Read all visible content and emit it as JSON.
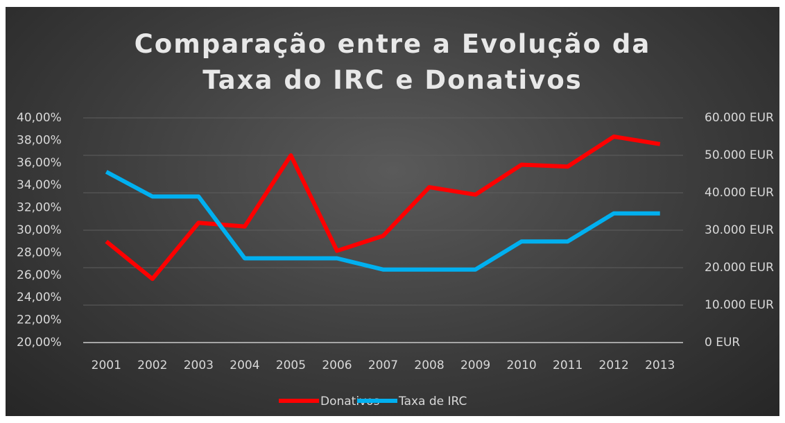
{
  "chart_data": {
    "type": "line",
    "title": "Comparação entre a Evolução da Taxa do IRC e Donativos",
    "categories": [
      "2001",
      "2002",
      "2003",
      "2004",
      "2005",
      "2006",
      "2007",
      "2008",
      "2009",
      "2010",
      "2011",
      "2012",
      "2013"
    ],
    "series": [
      {
        "name": "Donativos",
        "color": "#ff0000",
        "axis": "y2",
        "values": [
          27000,
          17000,
          32000,
          31000,
          50000,
          24500,
          28500,
          41500,
          39500,
          47500,
          47000,
          55000,
          53000
        ]
      },
      {
        "name": "Taxa de IRC",
        "color": "#00b0f0",
        "values": [
          35.2,
          33,
          33,
          27.5,
          27.5,
          27.5,
          26.5,
          26.5,
          26.5,
          29,
          29,
          31.5,
          31.5
        ]
      }
    ],
    "ylim": [
      20,
      40
    ],
    "yticks": [
      {
        "value": 20,
        "label": "20,00%"
      },
      {
        "value": 22,
        "label": "22,00%"
      },
      {
        "value": 24,
        "label": "24,00%"
      },
      {
        "value": 26,
        "label": "26,00%"
      },
      {
        "value": 28,
        "label": "28,00%"
      },
      {
        "value": 30,
        "label": "30,00%"
      },
      {
        "value": 32,
        "label": "32,00%"
      },
      {
        "value": 34,
        "label": "34,00%"
      },
      {
        "value": 36,
        "label": "36,00%"
      },
      {
        "value": 38,
        "label": "38,00%"
      },
      {
        "value": 40,
        "label": "40,00%"
      }
    ],
    "y2lim": [
      0,
      60000
    ],
    "y2ticks": [
      {
        "value": 0,
        "label": "0 EUR"
      },
      {
        "value": 10000,
        "label": "10.000 EUR"
      },
      {
        "value": 20000,
        "label": "20.000 EUR"
      },
      {
        "value": 30000,
        "label": "30.000 EUR"
      },
      {
        "value": 40000,
        "label": "40.000 EUR"
      },
      {
        "value": 50000,
        "label": "50.000 EUR"
      },
      {
        "value": 60000,
        "label": "60.000 EUR"
      }
    ],
    "grid": true,
    "legend": "bottom"
  }
}
